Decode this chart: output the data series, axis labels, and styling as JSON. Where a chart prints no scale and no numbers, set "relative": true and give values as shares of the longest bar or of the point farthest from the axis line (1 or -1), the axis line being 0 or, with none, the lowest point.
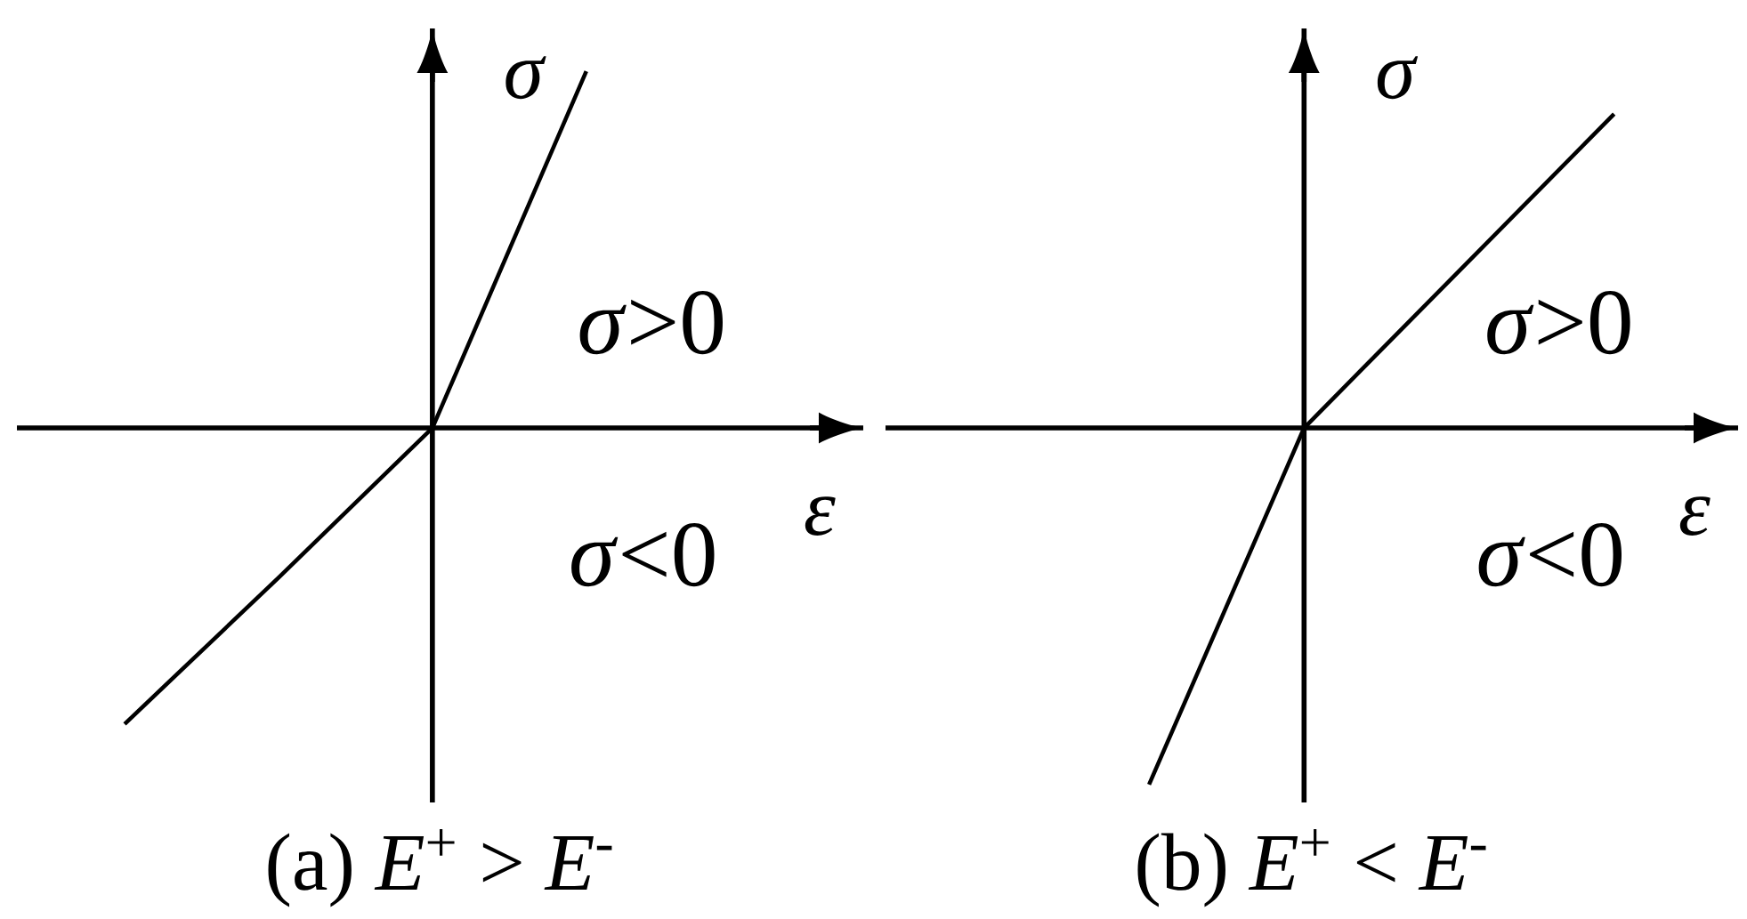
{
  "chart_data": [
    {
      "type": "line",
      "relative": true,
      "title": "(a) *E*$^{+}$ > *E*$^{-}$",
      "xlabel": "ε",
      "ylabel": "σ",
      "annotations": [
        "*σ*>0",
        "*σ*<0"
      ],
      "categories": [
        null,
        null,
        null,
        null
      ],
      "series": [
        {
          "color": "#000000",
          "values": [
            -0.83,
            -0.42,
            0,
            1
          ]
        }
      ]
    },
    {
      "type": "line",
      "relative": true,
      "title": "(b) *E*$^{+}$ < *E*$^{-}$",
      "xlabel": "ε",
      "ylabel": "σ",
      "annotations": [
        "*σ*>0",
        "*σ*<0"
      ],
      "categories": [
        null,
        null,
        null,
        null
      ],
      "series": [
        {
          "color": "#000000",
          "values": [
            -1,
            0,
            0.44,
            0.88
          ]
        }
      ]
    }
  ]
}
